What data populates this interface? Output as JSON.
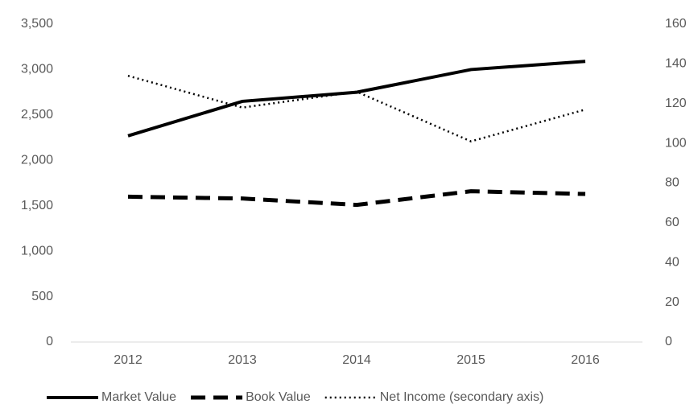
{
  "chart_data": {
    "type": "line",
    "categories": [
      "2012",
      "2013",
      "2014",
      "2015",
      "2016"
    ],
    "series": [
      {
        "name": "Market Value",
        "color": "#000000",
        "line_style": "solid",
        "values": [
          2270,
          2650,
          2750,
          3000,
          3090
        ]
      },
      {
        "name": "Book Value",
        "color": "#000000",
        "line_style": "dashed",
        "values": [
          1600,
          1580,
          1510,
          1660,
          1630
        ]
      },
      {
        "name": "Net Income (secondary axis)",
        "color": "#000000",
        "line_style": "dotted",
        "axis": "y2",
        "values": [
          134,
          118,
          126,
          101,
          117
        ]
      }
    ],
    "ylim": [
      0,
      3500
    ],
    "yticks": [
      0,
      500,
      {
        "value": 1000,
        "label": "1,000"
      },
      {
        "value": 1500,
        "label": "1,500"
      },
      {
        "value": 2000,
        "label": "2,000"
      },
      {
        "value": 2500,
        "label": "2,500"
      },
      {
        "value": 3000,
        "label": "3,000"
      },
      {
        "value": 3500,
        "label": "3,500"
      }
    ],
    "y2lim": [
      0,
      160
    ],
    "y2ticks": [
      0,
      20,
      40,
      60,
      80,
      100,
      120,
      140,
      160
    ],
    "grid": false,
    "legend": "bottom"
  }
}
